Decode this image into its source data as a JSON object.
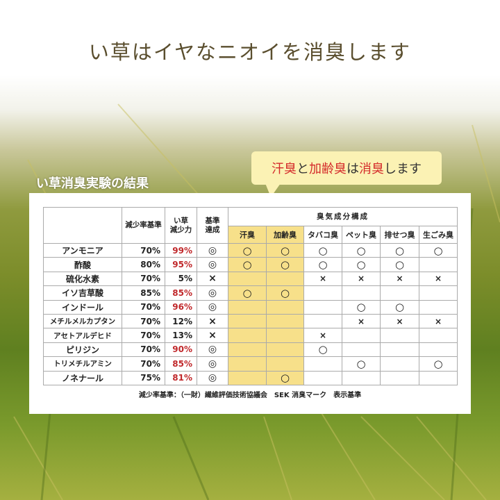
{
  "title": "い草はイヤなニオイを消臭します",
  "section_label": "い草消臭実験の結果",
  "callout": {
    "parts": [
      {
        "t": "汗臭",
        "red": true
      },
      {
        "t": "と",
        "red": false
      },
      {
        "t": "加齢臭",
        "red": true
      },
      {
        "t": "は",
        "red": false
      },
      {
        "t": "消臭",
        "red": true
      },
      {
        "t": "します",
        "red": false
      }
    ]
  },
  "table": {
    "headers": {
      "standard": "減少率基準",
      "igusa": "い草\n減少力",
      "achieved": "基準\n達成",
      "group": "臭気成分構成",
      "odors": [
        "汗臭",
        "加齢臭",
        "タバコ臭",
        "ペット臭",
        "排せつ臭",
        "生ごみ臭"
      ]
    },
    "highlight_color": "#f7e08a",
    "pass_color": "#c0282b",
    "rows": [
      {
        "name": "アンモニア",
        "standard": "70%",
        "igusa": "99%",
        "pass": true,
        "achieved": "◎",
        "odors": [
          "○",
          "○",
          "○",
          "○",
          "○",
          "○"
        ]
      },
      {
        "name": "酢酸",
        "standard": "80%",
        "igusa": "95%",
        "pass": true,
        "achieved": "◎",
        "odors": [
          "○",
          "○",
          "○",
          "○",
          "○",
          ""
        ]
      },
      {
        "name": "硫化水素",
        "standard": "70%",
        "igusa": "5%",
        "pass": false,
        "achieved": "×",
        "odors": [
          "",
          "",
          "×",
          "×",
          "×",
          "×"
        ]
      },
      {
        "name": "イソ吉草酸",
        "standard": "85%",
        "igusa": "85%",
        "pass": true,
        "achieved": "◎",
        "odors": [
          "○",
          "○",
          "",
          "",
          "",
          ""
        ]
      },
      {
        "name": "インドール",
        "standard": "70%",
        "igusa": "96%",
        "pass": true,
        "achieved": "◎",
        "odors": [
          "",
          "",
          "",
          "○",
          "○",
          ""
        ]
      },
      {
        "name": "メチルメルカプタン",
        "standard": "70%",
        "igusa": "12%",
        "pass": false,
        "achieved": "×",
        "odors": [
          "",
          "",
          "",
          "×",
          "×",
          "×"
        ]
      },
      {
        "name": "アセトアルデヒド",
        "standard": "70%",
        "igusa": "13%",
        "pass": false,
        "achieved": "×",
        "odors": [
          "",
          "",
          "×",
          "",
          "",
          ""
        ]
      },
      {
        "name": "ピリジン",
        "standard": "70%",
        "igusa": "90%",
        "pass": true,
        "achieved": "◎",
        "odors": [
          "",
          "",
          "○",
          "",
          "",
          ""
        ]
      },
      {
        "name": "トリメチルアミン",
        "standard": "70%",
        "igusa": "85%",
        "pass": true,
        "achieved": "◎",
        "odors": [
          "",
          "",
          "",
          "○",
          "",
          "○"
        ]
      },
      {
        "name": "ノネナール",
        "standard": "75%",
        "igusa": "81%",
        "pass": true,
        "achieved": "◎",
        "odors": [
          "",
          "○",
          "",
          "",
          "",
          ""
        ]
      }
    ],
    "footnote": "減少率基準：（一財）繊維評価技術協議会　SEK 消臭マーク　表示基準"
  }
}
